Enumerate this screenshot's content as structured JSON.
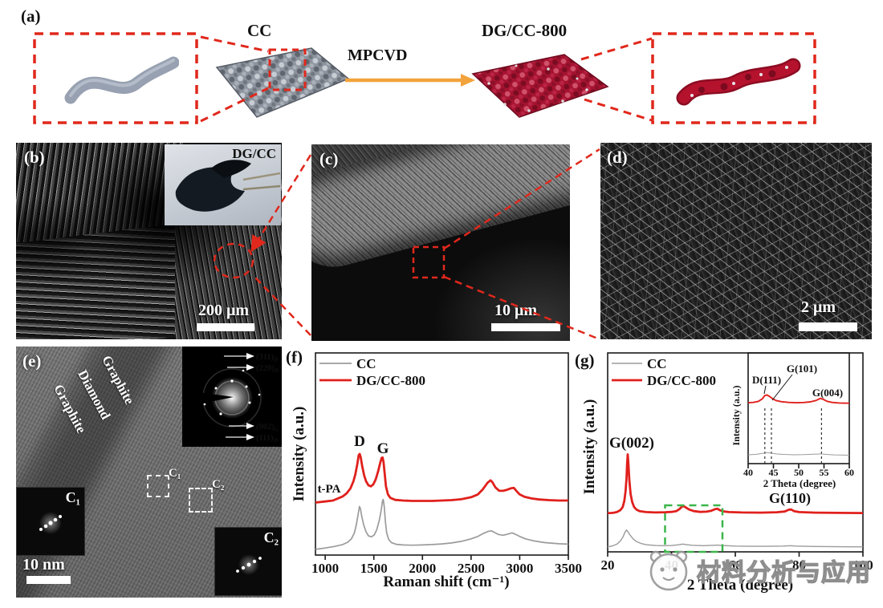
{
  "figure": {
    "panel_a": {
      "label": "(a)",
      "cc_label": "CC",
      "process_label": "MPCVD",
      "product_label": "DG/CC-800",
      "dashed_color": "#e0281c",
      "arrow_color": "#f2a33c"
    },
    "panel_b": {
      "label": "(b)",
      "inset_label": "DG/CC",
      "scale_bar": "200 μm"
    },
    "panel_c": {
      "label": "(c)",
      "scale_bar": "10 μm"
    },
    "panel_d": {
      "label": "(d)",
      "scale_bar": "2 μm"
    },
    "panel_e": {
      "label": "(e)",
      "region_labels": [
        "Graphite",
        "Diamond",
        "Graphite"
      ],
      "saed_annotations": [
        {
          "main": "(311)",
          "sub": "D"
        },
        {
          "main": "(220)",
          "sub": "D"
        },
        {
          "main": "(002)",
          "sub": "G"
        },
        {
          "main": "(111)",
          "sub": "D"
        }
      ],
      "zone_boxes": [
        "C₁",
        "C₂"
      ],
      "fft_insets": [
        "C₁",
        "C₂"
      ],
      "scale_bar": "10 nm"
    },
    "panel_f": {
      "label": "(f)"
    },
    "panel_g": {
      "label": "(g)"
    },
    "watermark": {
      "text": "材料分析与应用",
      "logo": "mascot-circle-logo"
    }
  },
  "chart_data": [
    {
      "id": "raman-spectra",
      "type": "line",
      "xlabel": "Raman shift (cm⁻¹)",
      "ylabel": "Intensity (a.u.)",
      "xlim": [
        900,
        3500
      ],
      "xticks": [
        1000,
        1500,
        2000,
        2500,
        3000,
        3500
      ],
      "grid": false,
      "legend_position": "top-left",
      "annotations": [
        {
          "text": "D",
          "x": 1350
        },
        {
          "text": "G",
          "x": 1590
        },
        {
          "text": "t-PA",
          "x": 1010
        }
      ],
      "series": [
        {
          "name": "CC",
          "color": "#9b9b9b",
          "points": [
            [
              900,
              2.8
            ],
            [
              1000,
              3.5
            ],
            [
              1100,
              4.3
            ],
            [
              1180,
              5.2
            ],
            [
              1230,
              6.3
            ],
            [
              1270,
              8
            ],
            [
              1300,
              11
            ],
            [
              1320,
              15
            ],
            [
              1340,
              20.5
            ],
            [
              1352,
              24
            ],
            [
              1362,
              23
            ],
            [
              1375,
              19.5
            ],
            [
              1395,
              15
            ],
            [
              1420,
              11.5
            ],
            [
              1445,
              9.5
            ],
            [
              1475,
              9
            ],
            [
              1505,
              10
            ],
            [
              1530,
              12.5
            ],
            [
              1555,
              17
            ],
            [
              1575,
              22
            ],
            [
              1590,
              27
            ],
            [
              1597,
              27.5
            ],
            [
              1607,
              24
            ],
            [
              1618,
              17
            ],
            [
              1632,
              11
            ],
            [
              1652,
              7.8
            ],
            [
              1680,
              6.2
            ],
            [
              1730,
              5.3
            ],
            [
              1800,
              5
            ],
            [
              1900,
              4.9
            ],
            [
              2000,
              5
            ],
            [
              2100,
              5.2
            ],
            [
              2200,
              5.5
            ],
            [
              2300,
              6
            ],
            [
              2400,
              6.8
            ],
            [
              2500,
              8
            ],
            [
              2570,
              9.2
            ],
            [
              2630,
              10.8
            ],
            [
              2680,
              11.8
            ],
            [
              2710,
              12
            ],
            [
              2740,
              11.2
            ],
            [
              2780,
              10.2
            ],
            [
              2830,
              9.8
            ],
            [
              2880,
              10.4
            ],
            [
              2920,
              11
            ],
            [
              2950,
              10.4
            ],
            [
              3000,
              9.2
            ],
            [
              3060,
              8
            ],
            [
              3150,
              7
            ],
            [
              3250,
              6.2
            ],
            [
              3400,
              5.6
            ],
            [
              3500,
              5.4
            ]
          ]
        },
        {
          "name": "DG/CC-800",
          "color": "#e0201c",
          "points": [
            [
              900,
              26
            ],
            [
              1000,
              26.5
            ],
            [
              1080,
              27
            ],
            [
              1140,
              28.2
            ],
            [
              1180,
              29
            ],
            [
              1220,
              30.5
            ],
            [
              1260,
              33
            ],
            [
              1290,
              36.5
            ],
            [
              1310,
              40
            ],
            [
              1330,
              45
            ],
            [
              1345,
              49.5
            ],
            [
              1355,
              50
            ],
            [
              1365,
              48.5
            ],
            [
              1380,
              44
            ],
            [
              1400,
              39.5
            ],
            [
              1420,
              36.5
            ],
            [
              1445,
              34.5
            ],
            [
              1470,
              34
            ],
            [
              1495,
              35
            ],
            [
              1520,
              37.5
            ],
            [
              1545,
              41.5
            ],
            [
              1565,
              45.5
            ],
            [
              1580,
              48
            ],
            [
              1590,
              48.3
            ],
            [
              1600,
              46
            ],
            [
              1612,
              40
            ],
            [
              1625,
              34
            ],
            [
              1645,
              30
            ],
            [
              1670,
              28.3
            ],
            [
              1720,
              27.3
            ],
            [
              1800,
              27
            ],
            [
              1900,
              26.8
            ],
            [
              2000,
              26.8
            ],
            [
              2100,
              26.8
            ],
            [
              2200,
              27
            ],
            [
              2300,
              27.2
            ],
            [
              2400,
              27.6
            ],
            [
              2500,
              28.6
            ],
            [
              2570,
              30
            ],
            [
              2620,
              32.5
            ],
            [
              2670,
              35.8
            ],
            [
              2700,
              37
            ],
            [
              2720,
              36
            ],
            [
              2750,
              33.5
            ],
            [
              2790,
              31.8
            ],
            [
              2830,
              31.8
            ],
            [
              2870,
              32.3
            ],
            [
              2910,
              33
            ],
            [
              2940,
              33.2
            ],
            [
              2965,
              31.8
            ],
            [
              3000,
              30
            ],
            [
              3050,
              28.8
            ],
            [
              3120,
              28
            ],
            [
              3200,
              27.5
            ],
            [
              3300,
              27.2
            ],
            [
              3400,
              27
            ],
            [
              3500,
              27
            ]
          ]
        }
      ]
    },
    {
      "id": "xrd-patterns",
      "type": "line",
      "xlabel": "2 Theta (degree)",
      "ylabel": "Intensity (a.u.)",
      "xlim": [
        20,
        100
      ],
      "xticks": [
        20,
        40,
        60,
        80,
        100
      ],
      "grid": false,
      "legend_position": "top-left",
      "annotations": [
        {
          "text": "G(002)",
          "x": 26.3
        },
        {
          "text": "G(110)",
          "x": 77
        }
      ],
      "highlight_box": {
        "x_range": [
          38,
          56
        ],
        "color": "#3cb54a"
      },
      "series": [
        {
          "name": "CC",
          "color": "#9b9b9b",
          "points": [
            [
              20,
              2.5
            ],
            [
              21.5,
              3
            ],
            [
              23,
              4
            ],
            [
              24,
              5.5
            ],
            [
              24.8,
              7.5
            ],
            [
              25.4,
              9.8
            ],
            [
              25.9,
              11
            ],
            [
              26.4,
              10
            ],
            [
              27,
              8.5
            ],
            [
              28,
              6.5
            ],
            [
              29,
              5.2
            ],
            [
              30.5,
              4.2
            ],
            [
              32,
              3.6
            ],
            [
              35,
              3.2
            ],
            [
              38,
              3.1
            ],
            [
              40,
              3.2
            ],
            [
              42,
              3.5
            ],
            [
              43.5,
              3.9
            ],
            [
              44.8,
              3.6
            ],
            [
              46.5,
              3.3
            ],
            [
              50,
              3.1
            ],
            [
              53,
              3.3
            ],
            [
              54.5,
              3.4
            ],
            [
              56,
              3.2
            ],
            [
              60,
              2.9
            ],
            [
              65,
              2.8
            ],
            [
              70,
              2.8
            ],
            [
              75,
              2.9
            ],
            [
              77.3,
              3.1
            ],
            [
              79,
              2.9
            ],
            [
              85,
              2.7
            ],
            [
              92,
              2.6
            ],
            [
              100,
              2.5
            ]
          ]
        },
        {
          "name": "DG/CC-800",
          "color": "#e0201c",
          "points": [
            [
              20,
              19.5
            ],
            [
              21,
              19.5
            ],
            [
              22,
              19.7
            ],
            [
              23,
              20.1
            ],
            [
              24,
              21
            ],
            [
              24.7,
              22.5
            ],
            [
              25.2,
              25.5
            ],
            [
              25.6,
              30.5
            ],
            [
              25.9,
              37
            ],
            [
              26.1,
              44
            ],
            [
              26.3,
              49
            ],
            [
              26.5,
              44.5
            ],
            [
              26.8,
              36
            ],
            [
              27.2,
              29
            ],
            [
              27.7,
              25
            ],
            [
              28.3,
              22.5
            ],
            [
              29,
              21.3
            ],
            [
              30,
              20.5
            ],
            [
              32,
              20
            ],
            [
              35,
              19.8
            ],
            [
              38,
              19.9
            ],
            [
              40,
              20.1
            ],
            [
              41.5,
              20.5
            ],
            [
              42.5,
              21.5
            ],
            [
              43.3,
              22.8
            ],
            [
              43.8,
              23
            ],
            [
              44.5,
              22.3
            ],
            [
              45.5,
              21.3
            ],
            [
              47,
              20.5
            ],
            [
              49,
              20.1
            ],
            [
              51,
              20.2
            ],
            [
              52.5,
              20.7
            ],
            [
              53.7,
              21.5
            ],
            [
              54.4,
              21.7
            ],
            [
              55.2,
              20.9
            ],
            [
              56.5,
              20.3
            ],
            [
              58,
              20
            ],
            [
              62,
              19.8
            ],
            [
              68,
              19.7
            ],
            [
              73,
              19.9
            ],
            [
              75.5,
              20.3
            ],
            [
              76.8,
              21.2
            ],
            [
              77.5,
              21.3
            ],
            [
              78.4,
              20.5
            ],
            [
              80,
              20
            ],
            [
              85,
              19.7
            ],
            [
              92,
              19.6
            ],
            [
              100,
              19.5
            ]
          ]
        }
      ]
    },
    {
      "id": "xrd-inset-40-60",
      "type": "line",
      "xlabel": "2 Theta (degree)",
      "ylabel": "Intensity (a.u.)",
      "xlim": [
        40,
        60
      ],
      "xticks": [
        40,
        45,
        50,
        55,
        60
      ],
      "grid": false,
      "dashed_guides": [
        43.3,
        44.6,
        54.5
      ],
      "annotations": [
        {
          "text": "D(111)",
          "x": 43.3
        },
        {
          "text": "G(101)",
          "x": 44.6
        },
        {
          "text": "G(004)",
          "x": 54.5
        }
      ],
      "series": [
        {
          "name": "CC",
          "color": "#9b9b9b",
          "points": [
            [
              40,
              8
            ],
            [
              41.5,
              8.3
            ],
            [
              42.8,
              9.2
            ],
            [
              43.6,
              10
            ],
            [
              44.4,
              9.6
            ],
            [
              45.5,
              8.8
            ],
            [
              47,
              8.3
            ],
            [
              49,
              8
            ],
            [
              51,
              8.1
            ],
            [
              53,
              8.5
            ],
            [
              54.4,
              8.8
            ],
            [
              55.5,
              8.3
            ],
            [
              57,
              7.9
            ],
            [
              60,
              7.6
            ]
          ]
        },
        {
          "name": "DG/CC-800",
          "color": "#e0201c",
          "points": [
            [
              40,
              55
            ],
            [
              41,
              55.3
            ],
            [
              42,
              56.2
            ],
            [
              42.8,
              58.5
            ],
            [
              43.3,
              61.5
            ],
            [
              43.7,
              62
            ],
            [
              44.2,
              60.8
            ],
            [
              44.8,
              58.8
            ],
            [
              45.5,
              57
            ],
            [
              46.5,
              56
            ],
            [
              48,
              55.3
            ],
            [
              49.5,
              55
            ],
            [
              51,
              55.2
            ],
            [
              52.3,
              55.8
            ],
            [
              53.4,
              57
            ],
            [
              54.3,
              59
            ],
            [
              54.9,
              58
            ],
            [
              55.6,
              56.3
            ],
            [
              56.6,
              55.3
            ],
            [
              58,
              54.8
            ],
            [
              60,
              54.6
            ]
          ]
        }
      ]
    }
  ]
}
